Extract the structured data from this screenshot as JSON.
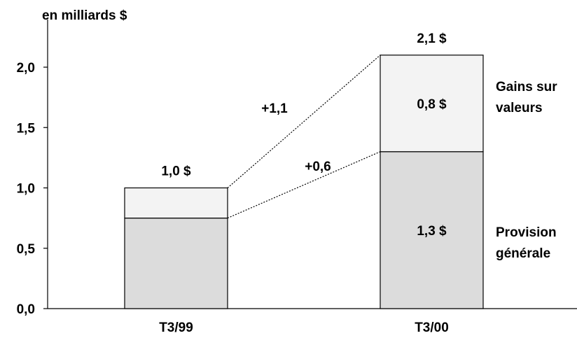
{
  "chart_data": {
    "type": "bar",
    "stacked": true,
    "title": "",
    "ylabel": "en milliards $",
    "ylim": [
      0,
      2.2
    ],
    "yticks": [
      {
        "value": 0.0,
        "label": "0,0"
      },
      {
        "value": 0.5,
        "label": "0,5"
      },
      {
        "value": 1.0,
        "label": "1,0"
      },
      {
        "value": 1.5,
        "label": "1,5"
      },
      {
        "value": 2.0,
        "label": "2,0"
      }
    ],
    "categories": [
      "T3/99",
      "T3/00"
    ],
    "series": [
      {
        "name": "Provision générale",
        "legend_lines": [
          "Provision",
          "générale"
        ],
        "values": [
          0.75,
          1.3
        ],
        "color": "#dcdcdc",
        "segment_labels": [
          "",
          "1,3 $"
        ]
      },
      {
        "name": "Gains sur valeurs",
        "legend_lines": [
          "Gains sur",
          "valeurs"
        ],
        "values": [
          0.25,
          0.8
        ],
        "color": "#f3f3f3",
        "segment_labels": [
          "",
          "0,8 $"
        ]
      }
    ],
    "totals": [
      1.0,
      2.1
    ],
    "total_labels": [
      "1,0 $",
      "2,1 $"
    ],
    "changes": [
      {
        "label": "+1,1",
        "from": 1.0,
        "to": 2.1
      },
      {
        "label": "+0,6",
        "from": 0.75,
        "to": 1.3
      }
    ],
    "grid": false
  }
}
